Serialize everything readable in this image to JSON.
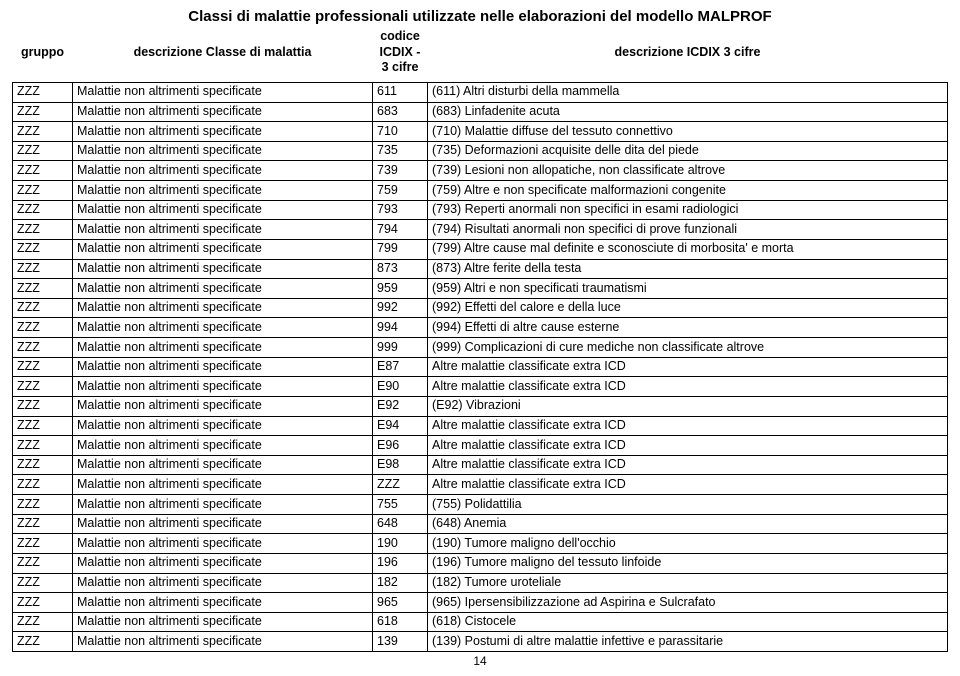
{
  "title": "Classi di malattie professionali utilizzate nelle elaborazioni del modello MALPROF",
  "page_number": "14",
  "columns": {
    "c1": "gruppo",
    "c2": "descrizione Classe di malattia",
    "c3": "codice ICDIX - 3 cifre",
    "c4": "descrizione ICDIX 3 cifre"
  },
  "rows": [
    {
      "g": "ZZZ",
      "d": "Malattie non altrimenti specificate",
      "c": "611",
      "e": "(611) Altri disturbi della mammella"
    },
    {
      "g": "ZZZ",
      "d": "Malattie non altrimenti specificate",
      "c": "683",
      "e": "(683) Linfadenite acuta"
    },
    {
      "g": "ZZZ",
      "d": "Malattie non altrimenti specificate",
      "c": "710",
      "e": "(710) Malattie diffuse del tessuto connettivo"
    },
    {
      "g": "ZZZ",
      "d": "Malattie non altrimenti specificate",
      "c": "735",
      "e": "(735) Deformazioni acquisite delle dita del piede"
    },
    {
      "g": "ZZZ",
      "d": "Malattie non altrimenti specificate",
      "c": "739",
      "e": "(739) Lesioni non allopatiche, non classificate altrove"
    },
    {
      "g": "ZZZ",
      "d": "Malattie non altrimenti specificate",
      "c": "759",
      "e": "(759) Altre e non specificate malformazioni congenite"
    },
    {
      "g": "ZZZ",
      "d": "Malattie non altrimenti specificate",
      "c": "793",
      "e": "(793) Reperti anormali non specifici in esami radiologici"
    },
    {
      "g": "ZZZ",
      "d": "Malattie non altrimenti specificate",
      "c": "794",
      "e": "(794) Risultati anormali non specifici di prove funzionali"
    },
    {
      "g": "ZZZ",
      "d": "Malattie non altrimenti specificate",
      "c": "799",
      "e": "(799) Altre cause mal definite e sconosciute di morbosita' e morta"
    },
    {
      "g": "ZZZ",
      "d": "Malattie non altrimenti specificate",
      "c": "873",
      "e": "(873) Altre ferite della testa"
    },
    {
      "g": "ZZZ",
      "d": "Malattie non altrimenti specificate",
      "c": "959",
      "e": "(959) Altri e non specificati traumatismi"
    },
    {
      "g": "ZZZ",
      "d": "Malattie non altrimenti specificate",
      "c": "992",
      "e": "(992) Effetti del calore e della luce"
    },
    {
      "g": "ZZZ",
      "d": "Malattie non altrimenti specificate",
      "c": "994",
      "e": "(994) Effetti di altre cause esterne"
    },
    {
      "g": "ZZZ",
      "d": "Malattie non altrimenti specificate",
      "c": "999",
      "e": "(999) Complicazioni di cure mediche non classificate altrove"
    },
    {
      "g": "ZZZ",
      "d": "Malattie non altrimenti specificate",
      "c": "E87",
      "e": "Altre malattie classificate extra ICD"
    },
    {
      "g": "ZZZ",
      "d": "Malattie non altrimenti specificate",
      "c": "E90",
      "e": "Altre malattie classificate extra ICD"
    },
    {
      "g": "ZZZ",
      "d": "Malattie non altrimenti specificate",
      "c": "E92",
      "e": "(E92) Vibrazioni"
    },
    {
      "g": "ZZZ",
      "d": "Malattie non altrimenti specificate",
      "c": "E94",
      "e": "Altre malattie classificate extra ICD"
    },
    {
      "g": "ZZZ",
      "d": "Malattie non altrimenti specificate",
      "c": "E96",
      "e": "Altre malattie classificate extra ICD"
    },
    {
      "g": "ZZZ",
      "d": "Malattie non altrimenti specificate",
      "c": "E98",
      "e": "Altre malattie classificate extra ICD"
    },
    {
      "g": "ZZZ",
      "d": "Malattie non altrimenti specificate",
      "c": "ZZZ",
      "e": "Altre malattie classificate extra ICD"
    },
    {
      "g": "ZZZ",
      "d": "Malattie non altrimenti specificate",
      "c": "755",
      "e": "(755) Polidattilia"
    },
    {
      "g": "ZZZ",
      "d": "Malattie non altrimenti specificate",
      "c": "648",
      "e": "(648) Anemia"
    },
    {
      "g": "ZZZ",
      "d": "Malattie non altrimenti specificate",
      "c": "190",
      "e": "(190) Tumore maligno dell'occhio"
    },
    {
      "g": "ZZZ",
      "d": "Malattie non altrimenti specificate",
      "c": "196",
      "e": "(196) Tumore maligno del tessuto linfoide"
    },
    {
      "g": "ZZZ",
      "d": "Malattie non altrimenti specificate",
      "c": "182",
      "e": "(182) Tumore uroteliale"
    },
    {
      "g": "ZZZ",
      "d": "Malattie non altrimenti specificate",
      "c": "965",
      "e": "(965) Ipersensibilizzazione ad Aspirina e Sulcrafato"
    },
    {
      "g": "ZZZ",
      "d": "Malattie non altrimenti specificate",
      "c": "618",
      "e": "(618) Cistocele"
    },
    {
      "g": "ZZZ",
      "d": "Malattie non altrimenti specificate",
      "c": "139",
      "e": "(139) Postumi di altre malattie infettive e parassitarie"
    }
  ]
}
